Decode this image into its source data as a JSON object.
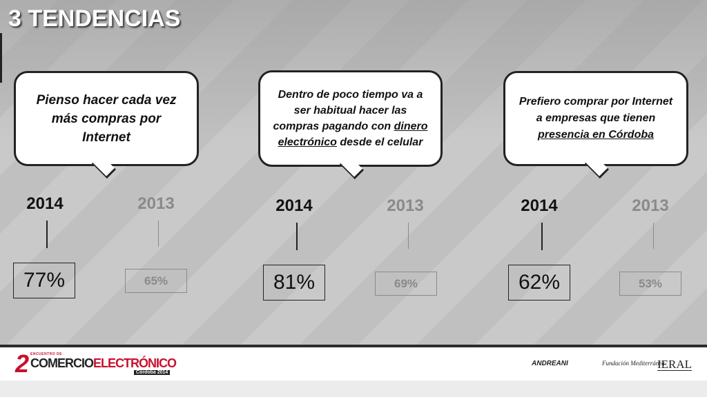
{
  "slide": {
    "title": "3 TENDENCIAS"
  },
  "trends": [
    {
      "bubble": {
        "line1": "Pienso hacer cada vez más compras por Internet"
      },
      "year_now": "2014",
      "year_prev": "2013",
      "value_now": "77%",
      "value_prev": "65%"
    },
    {
      "bubble": {
        "text_before": "Dentro de poco tiempo va a ser habitual hacer las compras pagando con ",
        "underlined": "dinero electrónico",
        "text_after": " desde el celular"
      },
      "year_now": "2014",
      "year_prev": "2013",
      "value_now": "81%",
      "value_prev": "69%"
    },
    {
      "bubble": {
        "text_before": "Prefiero comprar por Internet a empresas que tienen ",
        "underlined": "presencia en Córdoba",
        "text_after": ""
      },
      "year_now": "2014",
      "year_prev": "2013",
      "value_now": "62%",
      "value_prev": "53%"
    }
  ],
  "footer": {
    "logo": {
      "number": "2",
      "small_text": "ENCUENTRO DE",
      "word1": "COMERCIO",
      "word2": "ELECTRÓNICO",
      "city": "Córdoba 2014"
    },
    "sponsors": [
      "ANDREANI",
      "Fundación Mediterránea",
      "IERAL"
    ]
  },
  "colors": {
    "text_dark": "#111111",
    "text_muted": "#8a8a8a",
    "brand_red": "#c8102e"
  }
}
